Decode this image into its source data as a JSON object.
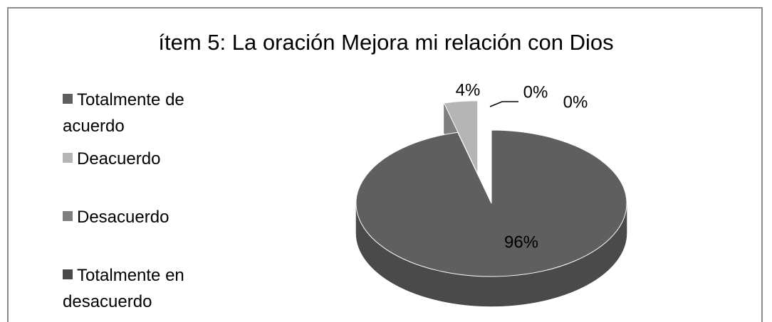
{
  "chart_data": {
    "type": "pie",
    "title": "ítem 5: La oración Mejora mi relación con Dios",
    "categories": [
      "Totalmente de acuerdo",
      "Deacuerdo",
      "Desacuerdo",
      "Totalmente en desacuerdo"
    ],
    "values": [
      96,
      4,
      0,
      0
    ],
    "value_labels": [
      "96%",
      "4%",
      "0%",
      "0%"
    ],
    "colors": [
      "#5f5f5f",
      "#b5b5b5",
      "#808080",
      "#4a4a4a"
    ],
    "legend": "left"
  }
}
